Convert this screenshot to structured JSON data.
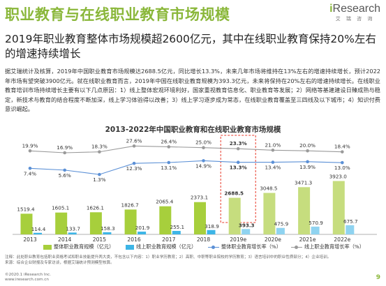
{
  "header": {
    "title": "职业教育与在线职业教育市场规模",
    "logo_text": "Research",
    "logo_i": "i",
    "logo_sub": "艾 瑞 咨 询"
  },
  "subtitle": "2019年职业教育整体市场规模超2600亿元，其中在线职业教育保持20%左右的增速持续增长",
  "body": "据艾瑞统计及核算，2019年中国职业教育市场规模达2688.5亿元，同比增长13.3%，未来几年市场将维持在13%左右的增速持续增长，预计2022年市场有望突破3900亿元。就在线职业教育而言，2019年中国在线职业教育规模为393.3亿元，未来将保持在20%左右的增速持续增长。在线职业教育培训市场持续增长主要有以下几点原因：1）线上整体宏观环境利好，国家重视教育信息化、职业教育等发展；2）网络等基建建设日臻成熟与稳定，新技术与教育的结合程度不断加深，线上学习体验得以改善；3）线上学习逐步成为常态，在线职业教育覆盖至三四线及以下城市；4）知识付费意识崛起。",
  "chart_data": {
    "type": "bar",
    "title": "2013-2022年中国职业教育和在线职业教育市场规模",
    "categories": [
      "2013",
      "2014",
      "2015",
      "2016",
      "2017",
      "2018",
      "2019e",
      "2020e",
      "2021e",
      "2022e"
    ],
    "series": [
      {
        "name": "整体职业教育规模（亿元）",
        "kind": "bar",
        "values": [
          1519.4,
          1605.1,
          1626.1,
          1826.7,
          2065.4,
          2373.1,
          2688.5,
          3048.5,
          3471.3,
          3923.0
        ],
        "labels": [
          "1519.4",
          "1605.1",
          "1626.1",
          "1826.7",
          "2065.4",
          "2373.1",
          "2688.5",
          "3048.5",
          "3471.3",
          "3923.0"
        ]
      },
      {
        "name": "线上职业教育规模（亿元）",
        "kind": "bar",
        "values": [
          114.4,
          133.7,
          158.3,
          201.9,
          255.1,
          318.9,
          393.3,
          475.9,
          570.9,
          675.7
        ],
        "labels": [
          "114.4",
          "133.7",
          "158.3",
          "201.9",
          "255.1",
          "318.9",
          "393.3",
          "475.9",
          "570.9",
          "675.7"
        ]
      },
      {
        "name": "整体职业教育增长率（%）",
        "kind": "line",
        "values": [
          7.4,
          5.6,
          1.3,
          12.3,
          13.1,
          14.9,
          13.3,
          13.4,
          13.9,
          13.0
        ],
        "labels": [
          "7.4%",
          "5.6%",
          "1.3%",
          "12.3%",
          "13.1%",
          "14.9%",
          "13.3%",
          "13.4%",
          "13.9%",
          "13.0%"
        ]
      },
      {
        "name": "线上职业教育增长率（%）",
        "kind": "line",
        "values": [
          19.9,
          16.9,
          18.3,
          27.6,
          26.4,
          25.0,
          23.3,
          21.0,
          20.0,
          18.4
        ],
        "labels": [
          "19.9%",
          "16.9%",
          "18.3%",
          "27.6%",
          "26.4%",
          "25.0%",
          "23.3%",
          "21.0%",
          "20.0%",
          "18.4%"
        ]
      }
    ],
    "highlight_category": "2019e",
    "colors": {
      "total_bar": "#a7cf3c",
      "total_bar_forecast": "#c6dd7e",
      "online_bar": "#3db5e6",
      "online_bar_forecast": "#8fd3f0",
      "total_line": "#5b90d6",
      "online_line": "#9a9a9a",
      "highlight_box": "#e83828"
    }
  },
  "notes": "注释：此处职业教育包括职业资格考试和职业技能提升两大类，不包含以下内容：1）职业学历教育；2）高职、中职等职业院校的学历教育；3）语言培训中的职业性质部分；4）企业培训。",
  "source": "来源：综合企业财报及专家访谈，根据艾瑞统计预测模型核算。",
  "footer": {
    "copyright": "©2020.1 iResearch Inc.",
    "website": "www.iresearch.com.cn",
    "page": "9"
  }
}
